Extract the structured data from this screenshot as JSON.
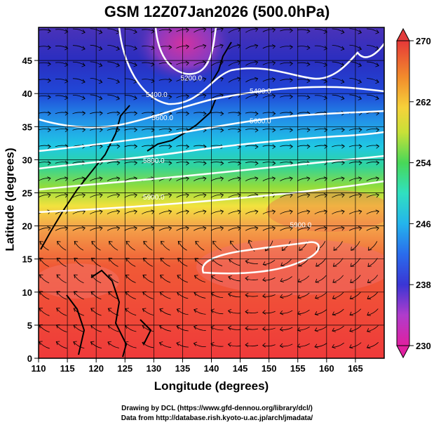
{
  "title": "GSM 12Z07Jan2026 (500.0hPa)",
  "xlabel": "Longitude (degrees)",
  "ylabel": "Latitude  (degrees)",
  "credits": {
    "line1": "Drawing by DCL (https://www.gfd-dennou.org/library/dcl/)",
    "line2": "Data from http://database.rish.kyoto-u.ac.jp/arch/jmadata/"
  },
  "map": {
    "lon_range": [
      110,
      170
    ],
    "lat_range": [
      0,
      50
    ],
    "x_ticks": [
      110,
      115,
      120,
      125,
      130,
      135,
      140,
      145,
      150,
      155,
      160,
      165
    ],
    "y_ticks": [
      0,
      5,
      10,
      15,
      20,
      25,
      30,
      35,
      40,
      45
    ],
    "grid": true,
    "shaded_field": "temperature (K)",
    "contour_field": "geopotential height (m)",
    "contour_labels": [
      {
        "text": "5200.0",
        "lon": 136.5,
        "lat": 42.0
      },
      {
        "text": "5400.0",
        "lon": 130.5,
        "lat": 39.5
      },
      {
        "text": "5400.0",
        "lon": 148.5,
        "lat": 40.0
      },
      {
        "text": "5600.0",
        "lon": 131.5,
        "lat": 36.0
      },
      {
        "text": "5600.0",
        "lon": 148.5,
        "lat": 35.5
      },
      {
        "text": "5800.0",
        "lon": 130.0,
        "lat": 29.5
      },
      {
        "text": "5900.0",
        "lon": 130.0,
        "lat": 24.0
      },
      {
        "text": "5900.0",
        "lon": 155.5,
        "lat": 19.8
      }
    ]
  },
  "colorbar": {
    "min": 230,
    "max": 270,
    "tick_labels": [
      "270",
      "262",
      "254",
      "246",
      "238",
      "230"
    ],
    "tick_values": [
      270,
      262,
      254,
      246,
      238,
      230
    ],
    "colors": [
      "#d82896",
      "#b33cc3",
      "#4636cf",
      "#2260e6",
      "#22a8ea",
      "#2edcd4",
      "#44d868",
      "#b6e03a",
      "#f2e03a",
      "#f2a628",
      "#ec5c22",
      "#e4363c"
    ]
  }
}
